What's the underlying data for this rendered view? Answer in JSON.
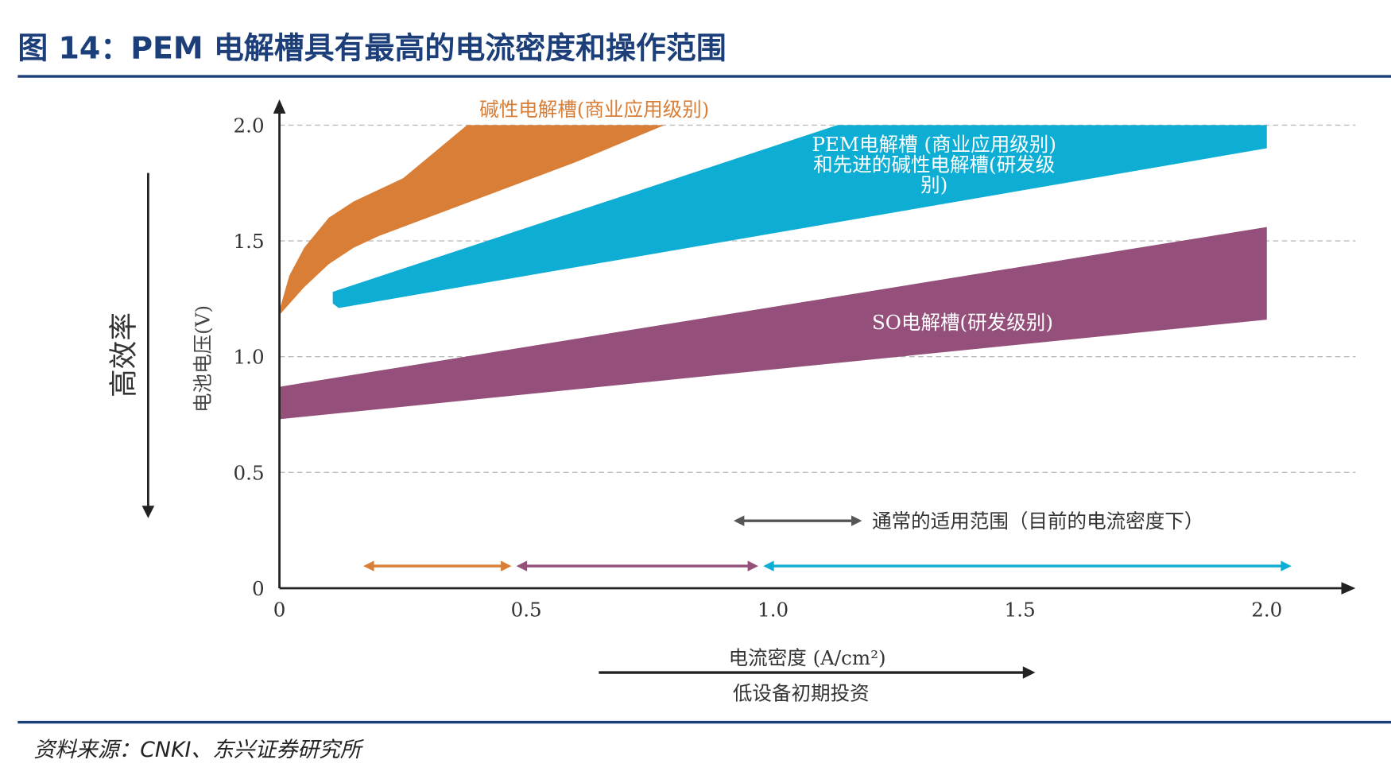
{
  "figure": {
    "title": "图 14：PEM 电解槽具有最高的电流密度和操作范围",
    "source": "资料来源：CNKI、东兴证券研究所",
    "title_color": "#1c3f7a"
  },
  "chart_data": {
    "type": "area",
    "xlabel": "电流密度 (A/cm²)",
    "ylabel": "电池电压(V)",
    "xlim": [
      0,
      2.0
    ],
    "ylim": [
      0,
      2.0
    ],
    "xticks": [
      "0",
      "0.5",
      "1.0",
      "1.5",
      "2.0"
    ],
    "xtick_values": [
      0,
      0.5,
      1.0,
      1.5,
      2.0
    ],
    "yticks": [
      "0",
      "0.5",
      "1.0",
      "1.5",
      "2.0"
    ],
    "ytick_values": [
      0,
      0.5,
      1.0,
      1.5,
      2.0
    ],
    "grid": "horizontal dashed",
    "left_annotation": "高效率",
    "bottom_annotation": "低设备初期投资",
    "series": [
      {
        "name": "碱性电解槽(商业应用级别)",
        "color": "#d97e36",
        "upper": [
          [
            0,
            1.2
          ],
          [
            0.02,
            1.35
          ],
          [
            0.05,
            1.47
          ],
          [
            0.1,
            1.6
          ],
          [
            0.15,
            1.67
          ],
          [
            0.25,
            1.77
          ],
          [
            0.38,
            2.0
          ]
        ],
        "lower": [
          [
            0,
            1.18
          ],
          [
            0.05,
            1.3
          ],
          [
            0.1,
            1.4
          ],
          [
            0.15,
            1.47
          ],
          [
            0.2,
            1.52
          ],
          [
            0.4,
            1.68
          ],
          [
            0.6,
            1.84
          ],
          [
            0.78,
            2.0
          ]
        ]
      },
      {
        "name": "PEM电解槽 (商业应用级别)",
        "name_line2": "和先进的碱性电解槽(研发级",
        "name_line3": "别)",
        "color": "#0eaed4",
        "upper": [
          [
            0.108,
            1.28
          ],
          [
            1.13,
            2.0
          ],
          [
            2.0,
            2.0
          ]
        ],
        "lower": [
          [
            0.108,
            1.23
          ],
          [
            0.12,
            1.21
          ],
          [
            2.0,
            1.9
          ]
        ]
      },
      {
        "name": "SO电解槽(研发级别)",
        "color": "#944f7a",
        "upper": [
          [
            0,
            0.87
          ],
          [
            2.0,
            1.56
          ]
        ],
        "lower": [
          [
            0,
            0.73
          ],
          [
            2.0,
            1.16
          ]
        ]
      }
    ],
    "legend_note": "通常的适用范围（目前的电流密度下）",
    "ranges": [
      {
        "series": "碱性电解槽",
        "x": [
          0.17,
          0.47
        ],
        "color": "#d97e36"
      },
      {
        "series": "SO电解槽",
        "x": [
          0.48,
          0.97
        ],
        "color": "#944f7a"
      },
      {
        "series": "PEM电解槽",
        "x": [
          0.98,
          2.05
        ],
        "color": "#0eaed4"
      }
    ],
    "note_arrow_color": "#555555"
  }
}
